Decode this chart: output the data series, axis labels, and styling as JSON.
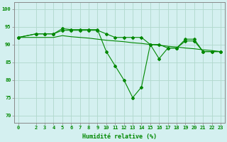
{
  "line1_x": [
    0,
    2,
    3,
    4,
    5,
    6,
    7,
    8,
    9,
    10,
    11,
    12,
    13,
    14,
    15,
    16,
    17,
    18,
    19,
    20,
    21,
    22,
    23
  ],
  "line1_y": [
    92,
    93,
    93,
    93,
    94,
    94,
    94,
    94,
    94,
    93,
    92,
    92,
    92,
    92,
    90,
    90,
    89,
    89,
    91,
    91,
    88,
    88,
    88
  ],
  "line2_x": [
    0,
    2,
    3,
    4,
    5,
    6,
    7,
    8,
    9,
    10,
    11,
    12,
    13,
    14,
    15,
    16,
    17,
    18,
    19,
    20,
    21,
    22,
    23
  ],
  "line2_y": [
    92,
    93,
    93,
    93,
    94.5,
    94.2,
    94.2,
    94.2,
    94.2,
    88,
    84,
    80,
    75,
    78,
    90,
    86,
    89,
    89,
    91.5,
    91.5,
    88,
    88,
    88
  ],
  "line3_x": [
    0,
    2,
    3,
    4,
    5,
    6,
    7,
    8,
    9,
    10,
    11,
    12,
    13,
    14,
    15,
    16,
    17,
    18,
    19,
    20,
    21,
    22,
    23
  ],
  "line3_y": [
    92,
    92,
    92,
    92,
    92.5,
    92.2,
    92.0,
    91.8,
    91.5,
    91.2,
    91.0,
    90.8,
    90.5,
    90.3,
    90.0,
    89.8,
    89.5,
    89.3,
    89.0,
    88.8,
    88.5,
    88.3,
    88.0
  ],
  "line_color": "#008800",
  "background_color": "#d4f0f0",
  "grid_color": "#b0d8cc",
  "xlabel": "Humidité relative (%)",
  "ylim": [
    68,
    102
  ],
  "xlim": [
    -0.5,
    23.5
  ],
  "yticks": [
    70,
    75,
    80,
    85,
    90,
    95,
    100
  ],
  "xticks": [
    0,
    2,
    3,
    4,
    5,
    6,
    7,
    8,
    9,
    10,
    11,
    12,
    13,
    14,
    15,
    16,
    17,
    18,
    19,
    20,
    21,
    22,
    23
  ]
}
